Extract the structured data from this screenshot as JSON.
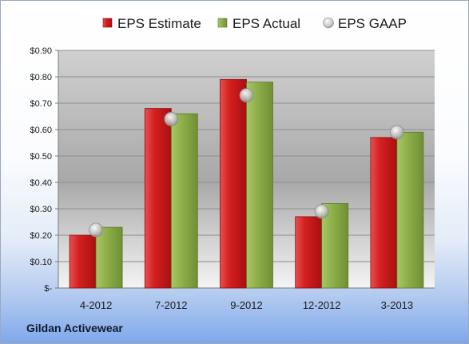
{
  "company": "Gildan Activewear",
  "colors": {
    "estimate": "#cc1f1f",
    "actual": "#8fb04a",
    "gaap": "#c8c8c8"
  },
  "chart_data": {
    "type": "bar",
    "categories": [
      "4-2012",
      "7-2012",
      "9-2012",
      "12-2012",
      "3-2013"
    ],
    "series": [
      {
        "name": "EPS Estimate",
        "kind": "bar",
        "values": [
          0.2,
          0.68,
          0.79,
          0.27,
          0.57
        ]
      },
      {
        "name": "EPS Actual",
        "kind": "bar",
        "values": [
          0.23,
          0.66,
          0.78,
          0.32,
          0.59
        ]
      },
      {
        "name": "EPS GAAP",
        "kind": "marker",
        "values": [
          0.22,
          0.64,
          0.73,
          0.29,
          0.59
        ]
      }
    ],
    "ylim": [
      0,
      0.9
    ],
    "yticks": [
      0,
      0.1,
      0.2,
      0.3,
      0.4,
      0.5,
      0.6,
      0.7,
      0.8,
      0.9
    ],
    "ytick_labels": [
      "$-",
      "$0.10",
      "$0.20",
      "$0.30",
      "$0.40",
      "$0.50",
      "$0.60",
      "$0.70",
      "$0.80",
      "$0.90"
    ],
    "grid": true,
    "legend_position": "top"
  }
}
